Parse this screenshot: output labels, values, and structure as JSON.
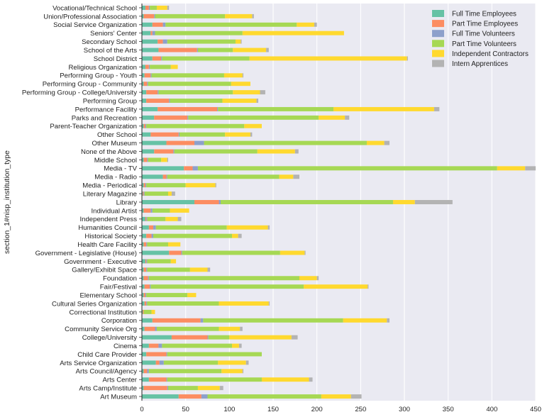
{
  "chart_data": {
    "type": "bar",
    "orientation": "horizontal",
    "stacked": true,
    "ylabel": "section_1#nisp_institution_type",
    "xlabel": "",
    "xlim": [
      0,
      450
    ],
    "xticks": [
      0,
      50,
      100,
      150,
      200,
      250,
      300,
      350,
      400,
      450
    ],
    "grid": true,
    "legend_position": "top-right",
    "categories": [
      "Art Museum",
      "Arts Camp/Institute",
      "Arts Center",
      "Arts Council/Agency",
      "Arts Service Organization",
      "Child Care Provider",
      "Cinema",
      "College/University",
      "Community Service Org",
      "Corporation",
      "Correctional Institution",
      "Cultural Series Organization",
      "Elementary School",
      "Fair/Festival",
      "Foundation",
      "Gallery/Exhibit Space",
      "Government - Executive",
      "Government - Legislative (House)",
      "Health Care Facility",
      "Historical Society",
      "Humanities Council",
      "Independent Press",
      "Individual Artist",
      "Library",
      "Literary Magazine",
      "Media - Periodical",
      "Media - Radio",
      "Media - TV",
      "Middle School",
      "None of the Above",
      "Other Museum",
      "Other School",
      "Parent-Teacher Organization",
      "Parks and Recreation",
      "Performance Facility",
      "Performing Group",
      "Performing Group - College/University",
      "Performing Group - Community",
      "Performing Group - Youth",
      "Religious Organization",
      "School District",
      "School of the Arts",
      "Secondary School",
      "Seniors' Center",
      "Social Service Organization",
      "Union/Professional Association",
      "Vocational/Technical School"
    ],
    "series": [
      {
        "name": "Full Time Employees",
        "color": "#66c2a5",
        "values": [
          42,
          2,
          8,
          2,
          16,
          5,
          8,
          34,
          3,
          12,
          1,
          3,
          2,
          3,
          2,
          2,
          4,
          31,
          2,
          5,
          8,
          4,
          2,
          60,
          1,
          2,
          24,
          48,
          2,
          14,
          28,
          10,
          2,
          14,
          18,
          5,
          5,
          2,
          3,
          4,
          12,
          19,
          18,
          10,
          12,
          2,
          4
        ]
      },
      {
        "name": "Part Time Employees",
        "color": "#fc8d62",
        "values": [
          26,
          27,
          20,
          4,
          4,
          23,
          11,
          41,
          12,
          55,
          1,
          2,
          2,
          6,
          5,
          3,
          1,
          14,
          3,
          6,
          5,
          1,
          8,
          28,
          1,
          2,
          4,
          10,
          4,
          22,
          32,
          32,
          2,
          38,
          68,
          26,
          13,
          4,
          7,
          4,
          10,
          44,
          6,
          2,
          12,
          12,
          4
        ]
      },
      {
        "name": "Full Time Volunteers",
        "color": "#8da0cb",
        "values": [
          7,
          1,
          1,
          2,
          5,
          1,
          4,
          1,
          2,
          3,
          0,
          1,
          1,
          1,
          1,
          1,
          1,
          1,
          1,
          2,
          3,
          1,
          2,
          2,
          1,
          1,
          1,
          6,
          1,
          1,
          11,
          1,
          1,
          1,
          1,
          1,
          1,
          1,
          1,
          1,
          1,
          1,
          5,
          3,
          3,
          1,
          1
        ]
      },
      {
        "name": "Part Time Volunteers",
        "color": "#a6d854",
        "values": [
          130,
          34,
          108,
          83,
          62,
          108,
          80,
          24,
          71,
          160,
          9,
          82,
          47,
          175,
          172,
          49,
          27,
          112,
          24,
          90,
          81,
          21,
          20,
          197,
          27,
          45,
          128,
          342,
          15,
          95,
          186,
          52,
          112,
          149,
          132,
          60,
          85,
          95,
          83,
          24,
          100,
          40,
          78,
          100,
          150,
          80,
          8
        ]
      },
      {
        "name": "Independent Contractors",
        "color": "#ffd92f",
        "values": [
          34,
          25,
          54,
          24,
          32,
          0,
          8,
          71,
          24,
          50,
          4,
          57,
          10,
          73,
          20,
          20,
          6,
          28,
          14,
          7,
          47,
          14,
          22,
          25,
          4,
          34,
          16,
          32,
          7,
          43,
          20,
          29,
          20,
          30,
          115,
          39,
          31,
          22,
          21,
          8,
          180,
          38,
          6,
          116,
          20,
          31,
          12
        ]
      },
      {
        "name": "Intern Apprentices",
        "color": "#b3b3b3",
        "values": [
          12,
          4,
          4,
          1,
          3,
          0,
          3,
          7,
          3,
          3,
          0,
          1,
          0,
          1,
          2,
          3,
          0,
          1,
          0,
          4,
          2,
          4,
          0,
          43,
          4,
          1,
          7,
          12,
          1,
          4,
          6,
          2,
          0,
          5,
          6,
          2,
          6,
          0,
          1,
          0,
          1,
          3,
          1,
          0,
          3,
          2,
          2
        ]
      }
    ]
  }
}
